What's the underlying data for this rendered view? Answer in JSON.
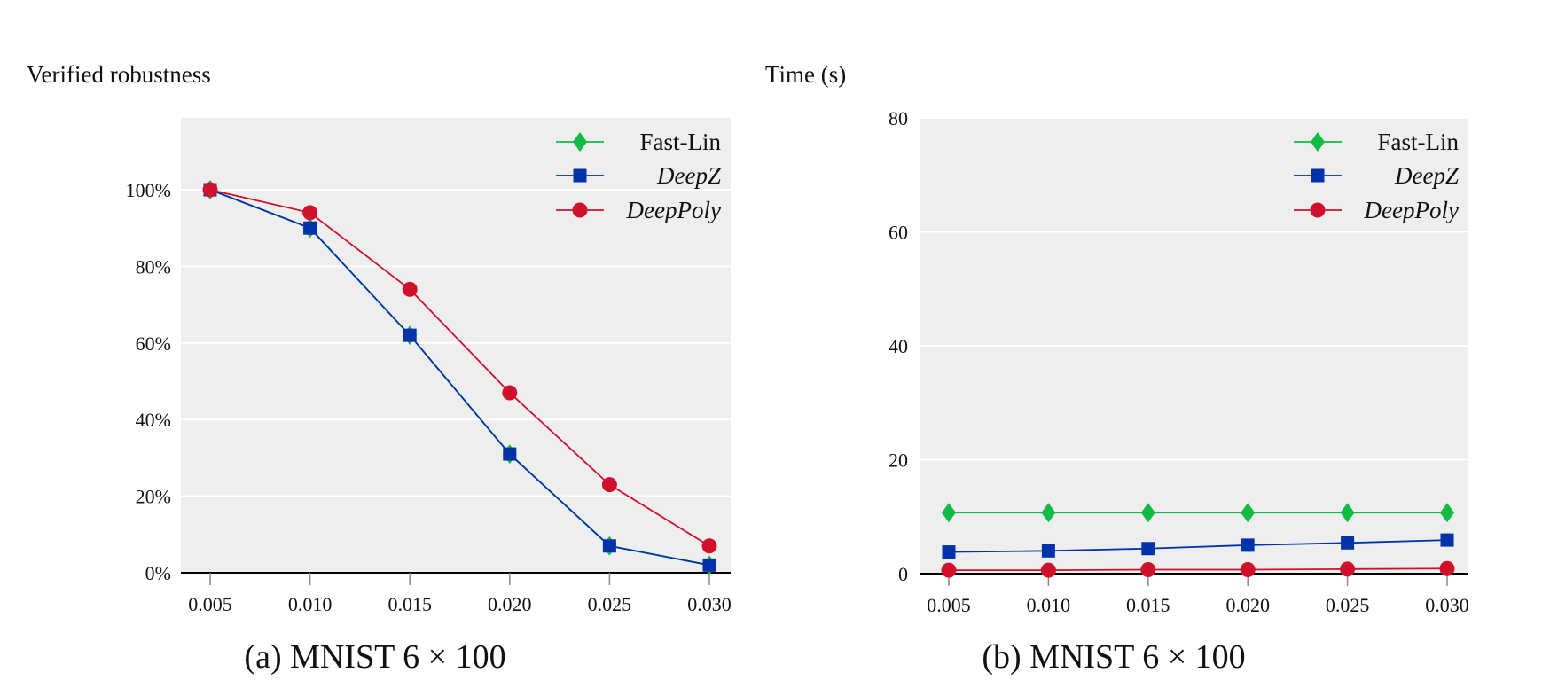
{
  "colors": {
    "plot_bg": "#eeeeee",
    "grid": "#ffffff",
    "axis": "#000000",
    "tick": "#888888",
    "fast_lin": "#11bb44",
    "deepz": "#0033aa",
    "deeppoly": "#d0112b"
  },
  "chart_data": [
    {
      "type": "line",
      "title": "",
      "caption": "(a) MNIST 6 × 100",
      "xlabel": "",
      "ylabel": "Verified robustness",
      "x": [
        0.005,
        0.01,
        0.015,
        0.02,
        0.025,
        0.03
      ],
      "x_tick_labels": [
        "0.005",
        "0.010",
        "0.015",
        "0.020",
        "0.025",
        "0.030"
      ],
      "ylim": [
        0,
        118
      ],
      "y_ticks": [
        0,
        20,
        40,
        60,
        80,
        100
      ],
      "y_tick_labels": [
        "0%",
        "20%",
        "40%",
        "60%",
        "80%",
        "100%"
      ],
      "grid": true,
      "legend_position": "top-right",
      "series": [
        {
          "name": "Fast-Lin",
          "italic": false,
          "marker": "diamond",
          "color_key": "fast_lin",
          "values": [
            100,
            90,
            62,
            31,
            7,
            2
          ]
        },
        {
          "name": "DeepZ",
          "italic": true,
          "marker": "square",
          "color_key": "deepz",
          "values": [
            100,
            90,
            62,
            31,
            7,
            2
          ]
        },
        {
          "name": "DeepPoly",
          "italic": true,
          "marker": "circle",
          "color_key": "deeppoly",
          "values": [
            100,
            94,
            74,
            47,
            23,
            7
          ]
        }
      ]
    },
    {
      "type": "line",
      "title": "",
      "caption": "(b) MNIST 6 × 100",
      "xlabel": "",
      "ylabel": "Time (s)",
      "x": [
        0.005,
        0.01,
        0.015,
        0.02,
        0.025,
        0.03
      ],
      "x_tick_labels": [
        "0.005",
        "0.010",
        "0.015",
        "0.020",
        "0.025",
        "0.030"
      ],
      "ylim": [
        0,
        80
      ],
      "y_ticks": [
        0,
        20,
        40,
        60,
        80
      ],
      "y_tick_labels": [
        "0",
        "20",
        "40",
        "60",
        "80"
      ],
      "grid": true,
      "legend_position": "top-right",
      "series": [
        {
          "name": "Fast-Lin",
          "italic": false,
          "marker": "diamond",
          "color_key": "fast_lin",
          "values": [
            10.7,
            10.7,
            10.7,
            10.7,
            10.7,
            10.7
          ]
        },
        {
          "name": "DeepZ",
          "italic": true,
          "marker": "square",
          "color_key": "deepz",
          "values": [
            3.8,
            4.0,
            4.4,
            5.0,
            5.4,
            5.9
          ]
        },
        {
          "name": "DeepPoly",
          "italic": true,
          "marker": "circle",
          "color_key": "deeppoly",
          "values": [
            0.6,
            0.6,
            0.7,
            0.7,
            0.8,
            0.9
          ]
        }
      ]
    }
  ]
}
